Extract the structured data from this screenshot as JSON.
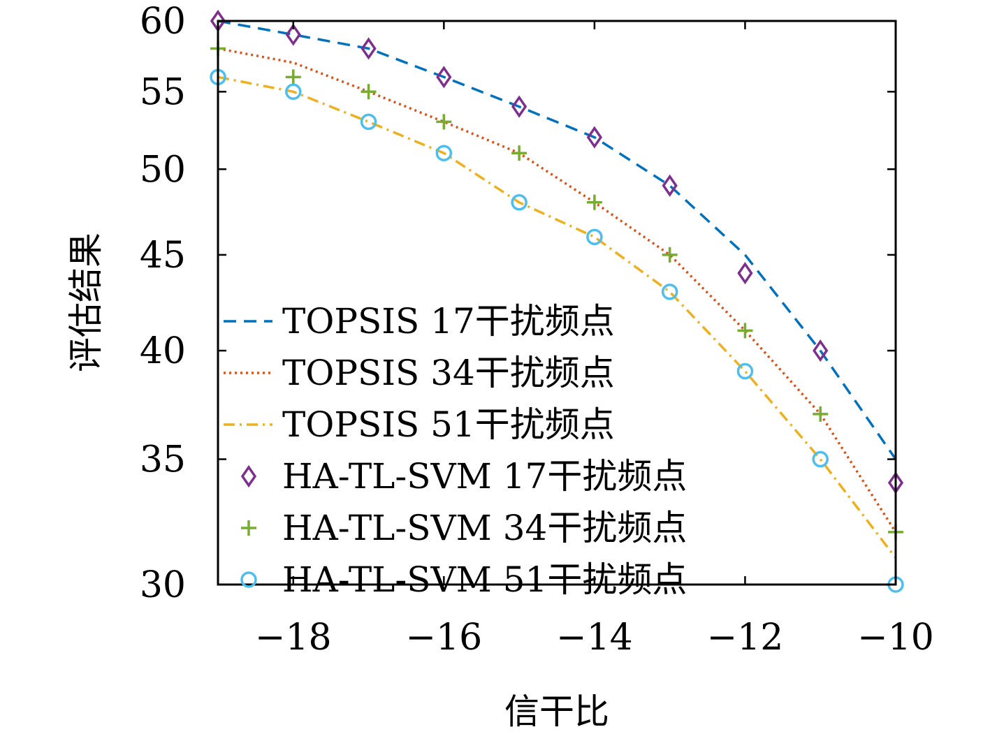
{
  "chart_data": {
    "type": "line",
    "title": "",
    "xlabel": "信干比",
    "ylabel": "评估结果",
    "xlim": [
      -19,
      -10
    ],
    "ylim": [
      30,
      60
    ],
    "ylog": true,
    "x": [
      -19,
      -18,
      -17,
      -16,
      -15,
      -14,
      -13,
      -12,
      -11,
      -10
    ],
    "x_ticks": [
      -18,
      -16,
      -14,
      -12,
      -10
    ],
    "x_tick_labels": [
      "−18",
      "−16",
      "−14",
      "−12",
      "−10"
    ],
    "y_ticks": [
      30,
      35,
      40,
      45,
      50,
      55,
      60
    ],
    "y_tick_labels": [
      "30",
      "35",
      "40",
      "45",
      "50",
      "55",
      "60"
    ],
    "grid": false,
    "legend_position": "bottom-left",
    "series": [
      {
        "name": "TOPSIS 17干扰频点",
        "kind": "line",
        "dash": "dashed",
        "color": "#0072BD",
        "values": [
          60,
          59,
          58,
          56,
          54,
          52,
          49,
          45,
          40,
          35
        ]
      },
      {
        "name": "TOPSIS 34干扰频点",
        "kind": "line",
        "dash": "dotted",
        "color": "#D95319",
        "values": [
          58,
          57,
          55,
          53,
          51,
          48,
          45,
          41,
          37,
          32
        ]
      },
      {
        "name": "TOPSIS 51干扰频点",
        "kind": "line",
        "dash": "dashdot",
        "color": "#EDB120",
        "values": [
          56,
          55,
          53,
          51,
          48,
          46,
          43,
          39,
          35,
          31
        ]
      },
      {
        "name": "HA-TL-SVM 17干扰频点",
        "kind": "marker",
        "marker": "diamond",
        "color": "#7E2F8E",
        "values": [
          60,
          59,
          58,
          56,
          54,
          52,
          49,
          44,
          40,
          34
        ]
      },
      {
        "name": "HA-TL-SVM 34干扰频点",
        "kind": "marker",
        "marker": "plus",
        "color": "#77AC30",
        "values": [
          58,
          56,
          55,
          53,
          51,
          48,
          45,
          41,
          37,
          32
        ]
      },
      {
        "name": "HA-TL-SVM 51干扰频点",
        "kind": "marker",
        "marker": "circle",
        "color": "#4DBEEE",
        "values": [
          56,
          55,
          53,
          51,
          48,
          46,
          43,
          39,
          35,
          30
        ]
      }
    ]
  }
}
